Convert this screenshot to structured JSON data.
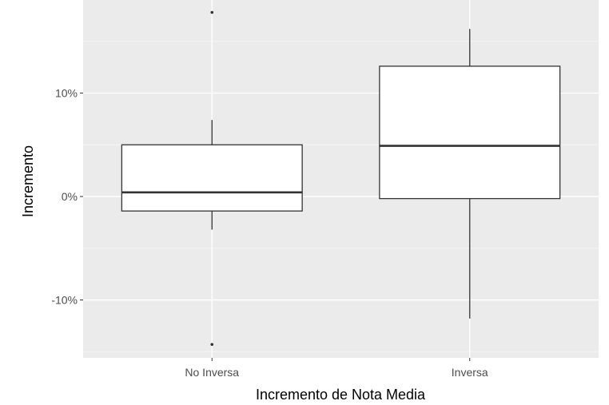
{
  "chart_data": {
    "type": "box",
    "title": "",
    "xlabel": "Incremento de Nota Media",
    "ylabel": "Incremento",
    "categories": [
      "No Inversa",
      "Inversa"
    ],
    "boxes": [
      {
        "category": "No Inversa",
        "whisker_low": -3.2,
        "q1": -1.4,
        "median": 0.4,
        "q3": 5.0,
        "whisker_high": 7.4,
        "outliers": [
          17.8,
          -14.3
        ]
      },
      {
        "category": "Inversa",
        "whisker_low": -11.8,
        "q1": -0.2,
        "median": 4.9,
        "q3": 12.6,
        "whisker_high": 16.2,
        "outliers": []
      }
    ],
    "ylim": [
      -15.6,
      19.0
    ],
    "yticks": [
      -10,
      0,
      10
    ],
    "ytick_labels": [
      "-10%",
      "0%",
      "10%"
    ],
    "grid": true,
    "colors": {
      "panel_background": "#ebebeb",
      "grid_major": "#ffffff",
      "grid_minor": "#f5f5f5",
      "box_fill": "#ffffff",
      "box_stroke": "#333333",
      "tick_text": "#4d4d4d",
      "axis_title": "#000000"
    }
  }
}
